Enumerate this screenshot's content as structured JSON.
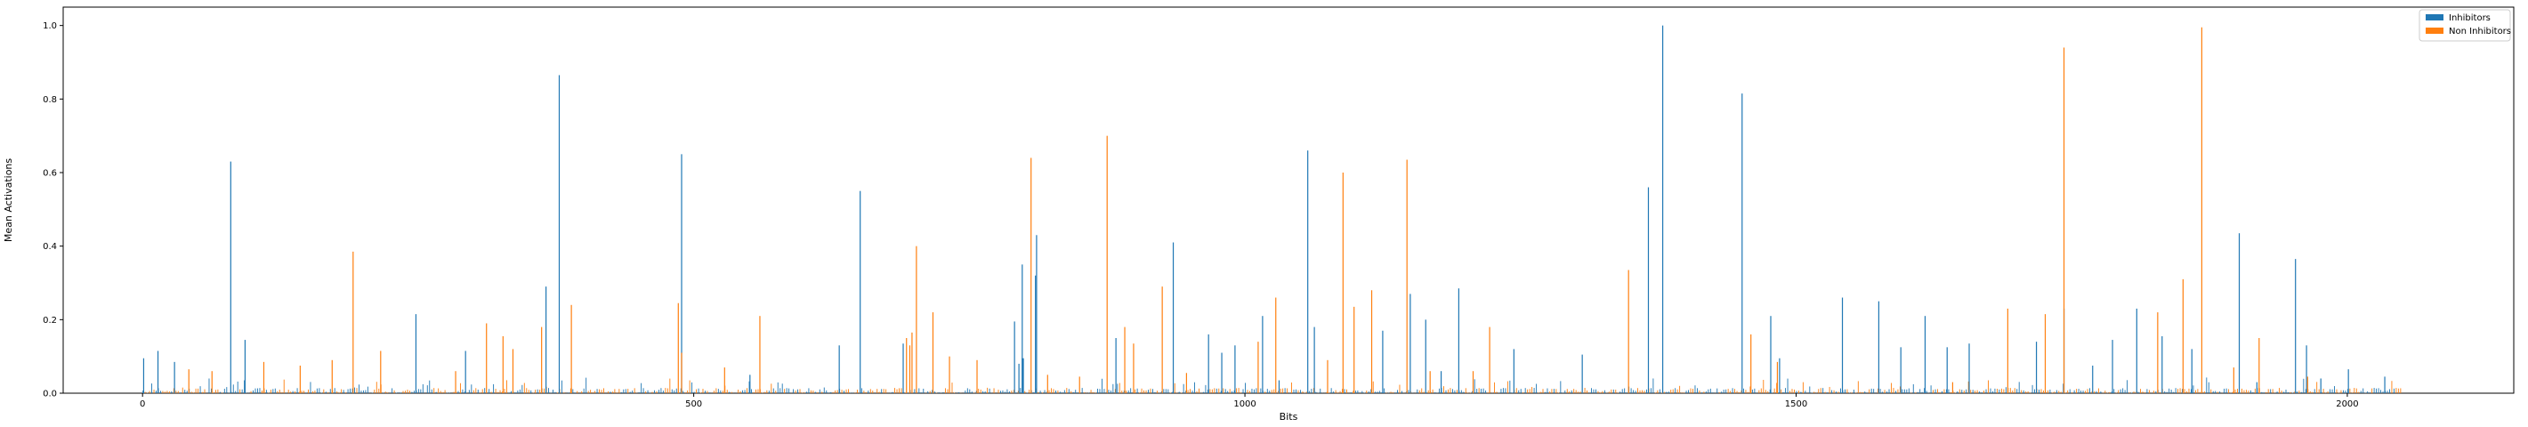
{
  "chart_data": {
    "type": "bar",
    "title": "",
    "xlabel": "Bits",
    "ylabel": "Mean Activations",
    "xlim": [
      -72,
      2151
    ],
    "ylim": [
      0,
      1.05
    ],
    "xticks": [
      0,
      500,
      1000,
      1500,
      2000
    ],
    "xtick_labels": [
      "0",
      "500",
      "1000",
      "1500",
      "2000"
    ],
    "yticks": [
      0.0,
      0.2,
      0.4,
      0.6,
      0.8,
      1.0
    ],
    "ytick_labels": [
      "0.0",
      "0.2",
      "0.4",
      "0.6",
      "0.8",
      "1.0"
    ],
    "grid": false,
    "legend": "top-right",
    "series": [
      {
        "name": "Inhibitors",
        "color": "#1f77b4",
        "points": [
          [
            1,
            0.095
          ],
          [
            14,
            0.115
          ],
          [
            29,
            0.085
          ],
          [
            80,
            0.63
          ],
          [
            93,
            0.145
          ],
          [
            248,
            0.215
          ],
          [
            293,
            0.115
          ],
          [
            366,
            0.29
          ],
          [
            378,
            0.865
          ],
          [
            489,
            0.65
          ],
          [
            551,
            0.05
          ],
          [
            632,
            0.13
          ],
          [
            651,
            0.55
          ],
          [
            690,
            0.135
          ],
          [
            791,
            0.195
          ],
          [
            798,
            0.095
          ],
          [
            799,
            0.095
          ],
          [
            795,
            0.08
          ],
          [
            798,
            0.35
          ],
          [
            810,
            0.32
          ],
          [
            811,
            0.43
          ],
          [
            883,
            0.15
          ],
          [
            935,
            0.41
          ],
          [
            967,
            0.16
          ],
          [
            979,
            0.11
          ],
          [
            991,
            0.13
          ],
          [
            1016,
            0.21
          ],
          [
            1031,
            0.035
          ],
          [
            1057,
            0.66
          ],
          [
            1063,
            0.18
          ],
          [
            1125,
            0.17
          ],
          [
            1150,
            0.27
          ],
          [
            1164,
            0.2
          ],
          [
            1178,
            0.06
          ],
          [
            1194,
            0.285
          ],
          [
            1244,
            0.12
          ],
          [
            1306,
            0.105
          ],
          [
            1366,
            0.56
          ],
          [
            1379,
            1.0
          ],
          [
            1451,
            0.815
          ],
          [
            1477,
            0.21
          ],
          [
            1485,
            0.095
          ],
          [
            1542,
            0.26
          ],
          [
            1575,
            0.25
          ],
          [
            1595,
            0.125
          ],
          [
            1617,
            0.21
          ],
          [
            1637,
            0.125
          ],
          [
            1657,
            0.135
          ],
          [
            1718,
            0.14
          ],
          [
            1743,
            0.23
          ],
          [
            1769,
            0.075
          ],
          [
            1787,
            0.145
          ],
          [
            1809,
            0.23
          ],
          [
            1832,
            0.155
          ],
          [
            1859,
            0.12
          ],
          [
            1902,
            0.435
          ],
          [
            1918,
            0.03
          ],
          [
            1953,
            0.365
          ],
          [
            1963,
            0.13
          ],
          [
            1976,
            0.04
          ],
          [
            2001,
            0.065
          ],
          [
            2034,
            0.045
          ]
        ]
      },
      {
        "name": "Non Inhibitors",
        "color": "#ff7f0e",
        "points": [
          [
            42,
            0.065
          ],
          [
            63,
            0.06
          ],
          [
            110,
            0.085
          ],
          [
            143,
            0.075
          ],
          [
            172,
            0.09
          ],
          [
            191,
            0.385
          ],
          [
            216,
            0.115
          ],
          [
            284,
            0.06
          ],
          [
            312,
            0.19
          ],
          [
            327,
            0.155
          ],
          [
            336,
            0.12
          ],
          [
            362,
            0.18
          ],
          [
            389,
            0.24
          ],
          [
            486,
            0.245
          ],
          [
            489,
            0.11
          ],
          [
            528,
            0.07
          ],
          [
            560,
            0.21
          ],
          [
            698,
            0.165
          ],
          [
            693,
            0.15
          ],
          [
            696,
            0.13
          ],
          [
            702,
            0.4
          ],
          [
            717,
            0.22
          ],
          [
            732,
            0.1
          ],
          [
            757,
            0.09
          ],
          [
            806,
            0.64
          ],
          [
            821,
            0.05
          ],
          [
            850,
            0.045
          ],
          [
            875,
            0.7
          ],
          [
            891,
            0.18
          ],
          [
            899,
            0.135
          ],
          [
            925,
            0.29
          ],
          [
            947,
            0.055
          ],
          [
            1012,
            0.14
          ],
          [
            1028,
            0.26
          ],
          [
            1075,
            0.09
          ],
          [
            1089,
            0.6
          ],
          [
            1099,
            0.235
          ],
          [
            1115,
            0.28
          ],
          [
            1147,
            0.635
          ],
          [
            1168,
            0.06
          ],
          [
            1207,
            0.06
          ],
          [
            1222,
            0.18
          ],
          [
            1348,
            0.335
          ],
          [
            1459,
            0.16
          ],
          [
            1483,
            0.085
          ],
          [
            1642,
            0.03
          ],
          [
            1692,
            0.23
          ],
          [
            1726,
            0.215
          ],
          [
            1743,
            0.94
          ],
          [
            1828,
            0.22
          ],
          [
            1851,
            0.31
          ],
          [
            1868,
            0.995
          ],
          [
            1897,
            0.07
          ],
          [
            1920,
            0.15
          ],
          [
            1964,
            0.045
          ]
        ]
      }
    ]
  }
}
